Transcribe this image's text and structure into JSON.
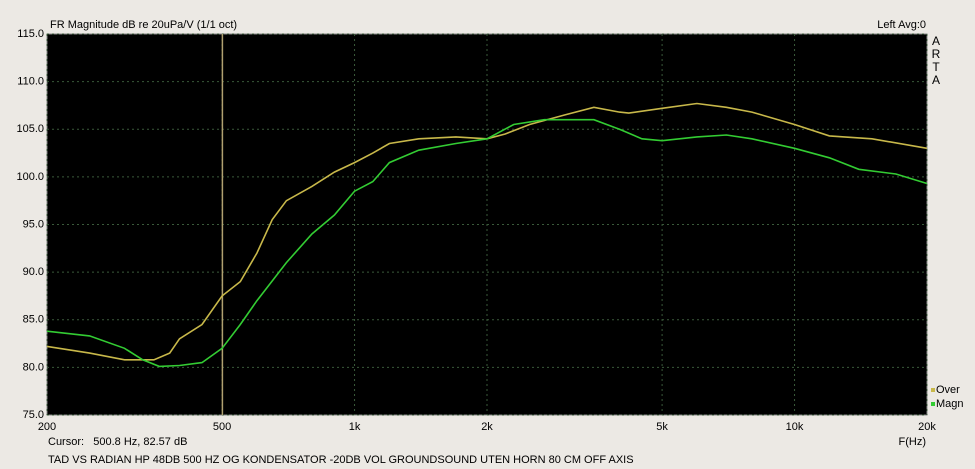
{
  "chart_data": {
    "type": "line",
    "title": "FR Magnitude dB re 20uPa/V (1/1 oct)",
    "channel": "Left  Avg:0",
    "brand": "ARTA",
    "x_label": "F(Hz)",
    "note": "TAD VS RADIAN HP 48DB 500 HZ OG KONDENSATOR -20DB VOL GROUNDSOUND UTEN HORN 80 CM OFF AXIS",
    "cursor": {
      "x": 500.8,
      "label": "Cursor:   500.8 Hz, 82.57 dB",
      "color": "#b0a070"
    },
    "xscale": "log",
    "xlim": [
      200,
      20000
    ],
    "xticks": [
      200,
      500,
      {
        "value": 1000,
        "label": "1k"
      },
      {
        "value": 2000,
        "label": "2k"
      },
      {
        "value": 5000,
        "label": "5k"
      },
      {
        "value": 10000,
        "label": "10k"
      },
      {
        "value": 20000,
        "label": "20k"
      }
    ],
    "ylim": [
      75,
      115
    ],
    "yticks": [
      {
        "value": 75,
        "label": "75.0"
      },
      {
        "value": 80,
        "label": "80.0"
      },
      {
        "value": 85,
        "label": "85.0"
      },
      {
        "value": 90,
        "label": "90.0"
      },
      {
        "value": 95,
        "label": "95.0"
      },
      {
        "value": 100,
        "label": "100.0"
      },
      {
        "value": 105,
        "label": "105.0"
      },
      {
        "value": 110,
        "label": "110.0"
      },
      {
        "value": 115,
        "label": "115.0"
      }
    ],
    "grid": true,
    "legend": "lower right",
    "series": [
      {
        "name": "Over",
        "color": "#c8b84a",
        "x": [
          200,
          250,
          300,
          350,
          380,
          400,
          450,
          500,
          550,
          600,
          650,
          700,
          800,
          900,
          1000,
          1100,
          1200,
          1400,
          1700,
          2000,
          2200,
          2500,
          3000,
          3500,
          4000,
          4200,
          5000,
          6000,
          7000,
          8000,
          10000,
          12000,
          15000,
          20000
        ],
        "values": [
          82.2,
          81.5,
          80.8,
          80.8,
          81.5,
          83,
          84.5,
          87.5,
          89,
          92,
          95.5,
          97.5,
          99,
          100.5,
          101.5,
          102.5,
          103.5,
          104,
          104.2,
          104,
          104.5,
          105.5,
          106.5,
          107.3,
          106.8,
          106.7,
          107.2,
          107.7,
          107.3,
          106.8,
          105.5,
          104.3,
          104,
          103
        ]
      },
      {
        "name": "Magn",
        "color": "#33cc33",
        "x": [
          200,
          250,
          300,
          330,
          360,
          400,
          450,
          500,
          550,
          600,
          700,
          800,
          900,
          1000,
          1100,
          1200,
          1400,
          1700,
          2000,
          2300,
          2700,
          3000,
          3500,
          4000,
          4500,
          5000,
          6000,
          7000,
          8000,
          10000,
          12000,
          14000,
          17000,
          20000
        ],
        "values": [
          83.8,
          83.3,
          82,
          80.8,
          80.1,
          80.2,
          80.5,
          82,
          84.5,
          87,
          91,
          94,
          96,
          98.5,
          99.5,
          101.5,
          102.8,
          103.5,
          104,
          105.5,
          106,
          106,
          106,
          105,
          104,
          103.8,
          104.2,
          104.4,
          104,
          103,
          102,
          100.8,
          100.3,
          99.3
        ]
      }
    ]
  }
}
